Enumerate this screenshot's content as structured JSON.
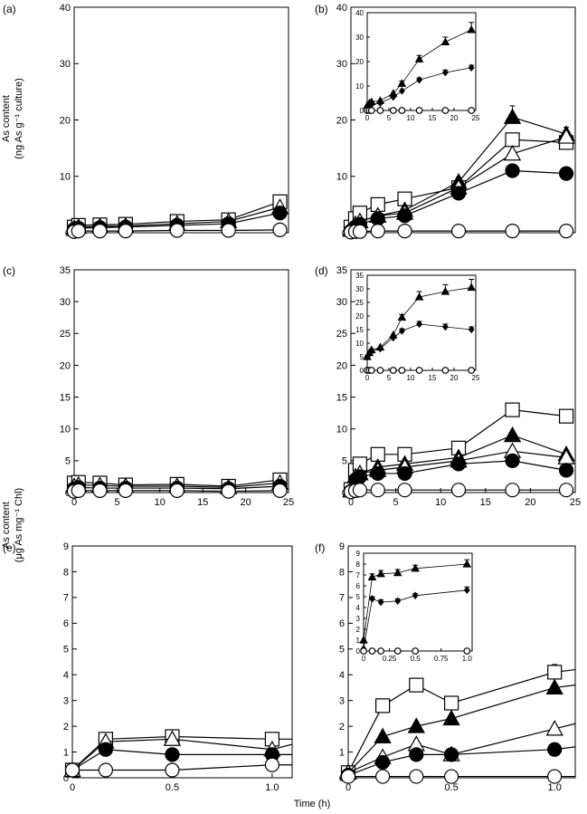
{
  "figure": {
    "ylabel_top": [
      "As content",
      "(ng As g⁻¹ culture)"
    ],
    "ylabel_bottom": [
      "As content",
      "(μg As mg⁻¹ Chl)"
    ],
    "xlabel": "Time (h)"
  },
  "chart_data": [
    {
      "id": "a",
      "label": "(a)",
      "type": "line",
      "xlim": [
        0,
        25
      ],
      "ylim": [
        0,
        40
      ],
      "xticks": [],
      "yticks": [
        0,
        10,
        20,
        30,
        40
      ],
      "series": [
        {
          "marker": "square-open",
          "x": [
            0,
            0.5,
            3,
            6,
            12,
            18,
            24
          ],
          "y": [
            1,
            1.3,
            1.4,
            1.5,
            2,
            2.3,
            5.5
          ]
        },
        {
          "marker": "triangle-open",
          "x": [
            0,
            0.5,
            3,
            6,
            12,
            18,
            24
          ],
          "y": [
            0.8,
            1,
            1.1,
            1.2,
            1.6,
            2,
            4.5
          ]
        },
        {
          "marker": "circle-filled",
          "x": [
            0,
            0.5,
            3,
            6,
            12,
            18,
            24
          ],
          "y": [
            0.6,
            0.8,
            0.9,
            1,
            1.3,
            1.6,
            3.5
          ]
        },
        {
          "marker": "circle-open",
          "x": [
            0,
            0.5,
            3,
            6,
            12,
            18,
            24
          ],
          "y": [
            0.2,
            0.3,
            0.3,
            0.3,
            0.4,
            0.4,
            0.5
          ]
        }
      ]
    },
    {
      "id": "b",
      "label": "(b)",
      "type": "line",
      "xlim": [
        0,
        25
      ],
      "ylim": [
        0,
        40
      ],
      "xticks": [],
      "yticks": [
        0,
        10,
        20,
        30,
        40
      ],
      "series": [
        {
          "marker": "square-open",
          "x": [
            0,
            0.5,
            1,
            3,
            6,
            12,
            18,
            24
          ],
          "y": [
            1,
            2.5,
            3.5,
            5,
            6,
            8,
            16.5,
            16
          ]
        },
        {
          "marker": "triangle-filled",
          "x": [
            0,
            0.5,
            1,
            3,
            6,
            12,
            18,
            24
          ],
          "y": [
            0.5,
            1.5,
            2,
            3,
            4,
            9,
            20.5,
            17.5
          ],
          "err": [
            0,
            0,
            0,
            0,
            0,
            0.8,
            2,
            1.2
          ]
        },
        {
          "marker": "triangle-open",
          "x": [
            0,
            0.5,
            1,
            3,
            6,
            12,
            18,
            24
          ],
          "y": [
            0.5,
            1.5,
            2,
            3,
            3.5,
            8,
            14,
            17
          ]
        },
        {
          "marker": "circle-filled",
          "x": [
            0,
            0.5,
            1,
            3,
            6,
            12,
            18,
            24
          ],
          "y": [
            0.3,
            1,
            1.5,
            2.5,
            3,
            7,
            11,
            10.5
          ]
        },
        {
          "marker": "circle-open",
          "x": [
            0,
            0.5,
            1,
            3,
            6,
            12,
            18,
            24
          ],
          "y": [
            0.1,
            0.2,
            0.2,
            0.3,
            0.3,
            0.3,
            0.3,
            0.3
          ]
        }
      ],
      "inset": {
        "xlim": [
          0,
          25
        ],
        "ylim": [
          0,
          40
        ],
        "xticks": [
          0,
          5,
          10,
          15,
          20,
          25
        ],
        "yticks": [
          0,
          10,
          20,
          30,
          40
        ],
        "series": [
          {
            "marker": "triangle-filled",
            "x": [
              0,
              0.5,
              1,
              3,
              6,
              8,
              12,
              18,
              24
            ],
            "y": [
              2,
              3,
              3.5,
              4,
              7,
              11,
              21,
              28,
              33
            ],
            "err": [
              0,
              0,
              0,
              0,
              0,
              1,
              1.5,
              2,
              3
            ]
          },
          {
            "marker": "diamond-filled",
            "x": [
              0,
              0.5,
              1,
              3,
              6,
              8,
              12,
              18,
              24
            ],
            "y": [
              1.5,
              2,
              2.5,
              3,
              5.5,
              8,
              12.5,
              15.5,
              17.5
            ],
            "err": [
              0,
              0,
              0,
              0,
              0,
              0,
              0.8,
              1,
              1
            ]
          },
          {
            "marker": "circle-open",
            "x": [
              0,
              0.5,
              1,
              3,
              6,
              8,
              12,
              18,
              24
            ],
            "y": [
              0,
              0,
              0,
              0,
              0,
              0,
              0,
              0,
              0
            ]
          }
        ]
      }
    },
    {
      "id": "c",
      "label": "(c)",
      "type": "line",
      "xlim": [
        0,
        25
      ],
      "ylim": [
        0,
        35
      ],
      "xticks": [
        0,
        5,
        10,
        15,
        20,
        25
      ],
      "yticks": [
        0,
        5,
        10,
        15,
        20,
        25,
        30,
        35
      ],
      "series": [
        {
          "marker": "square-open",
          "x": [
            0,
            0.5,
            3,
            6,
            12,
            18,
            24
          ],
          "y": [
            1.5,
            1.6,
            1.5,
            1.2,
            1.3,
            1,
            2
          ]
        },
        {
          "marker": "triangle-open",
          "x": [
            0,
            0.5,
            3,
            6,
            12,
            18,
            24
          ],
          "y": [
            1,
            1.2,
            1.1,
            1,
            1,
            0.8,
            1.5
          ]
        },
        {
          "marker": "circle-filled",
          "x": [
            0,
            0.5,
            3,
            6,
            12,
            18,
            24
          ],
          "y": [
            0.6,
            0.8,
            0.7,
            0.7,
            0.7,
            0.6,
            1
          ]
        },
        {
          "marker": "circle-open",
          "x": [
            0,
            0.5,
            3,
            6,
            12,
            18,
            24
          ],
          "y": [
            0.2,
            0.3,
            0.3,
            0.3,
            0.3,
            0.2,
            0.3
          ]
        }
      ]
    },
    {
      "id": "d",
      "label": "(d)",
      "type": "line",
      "xlim": [
        0,
        25
      ],
      "ylim": [
        0,
        35
      ],
      "xticks": [
        0,
        5,
        10,
        15,
        20,
        25
      ],
      "yticks": [
        0,
        5,
        10,
        15,
        20,
        25,
        30,
        35
      ],
      "series": [
        {
          "marker": "square-open",
          "x": [
            0,
            0.5,
            1,
            3,
            6,
            12,
            18,
            24
          ],
          "y": [
            0.5,
            3.5,
            4.5,
            6,
            6,
            7,
            13,
            12
          ]
        },
        {
          "marker": "triangle-filled",
          "x": [
            0,
            0.5,
            1,
            3,
            6,
            12,
            18,
            24
          ],
          "y": [
            0.3,
            2.5,
            3,
            4,
            4.5,
            5.5,
            9,
            6
          ]
        },
        {
          "marker": "triangle-open",
          "x": [
            0,
            0.5,
            1,
            3,
            6,
            12,
            18,
            24
          ],
          "y": [
            0.3,
            2.5,
            3,
            3.5,
            4,
            5,
            6.5,
            5.5
          ]
        },
        {
          "marker": "circle-filled",
          "x": [
            0,
            0.5,
            1,
            3,
            6,
            12,
            18,
            24
          ],
          "y": [
            0.2,
            2,
            2.5,
            3,
            3,
            4.5,
            5,
            3.5
          ]
        },
        {
          "marker": "circle-open",
          "x": [
            0,
            0.5,
            1,
            3,
            6,
            12,
            18,
            24
          ],
          "y": [
            0.1,
            0.3,
            0.4,
            0.4,
            0.4,
            0.4,
            0.4,
            0.4
          ]
        }
      ],
      "inset": {
        "xlim": [
          0,
          25
        ],
        "ylim": [
          0,
          35
        ],
        "xticks": [
          0,
          5,
          10,
          15,
          20,
          25
        ],
        "yticks": [
          0,
          5,
          10,
          15,
          20,
          25,
          30,
          35
        ],
        "series": [
          {
            "marker": "triangle-filled",
            "x": [
              0,
              0.5,
              1,
              3,
              6,
              8,
              12,
              18,
              24
            ],
            "y": [
              5,
              6.5,
              7.5,
              8.5,
              13,
              19.5,
              27,
              29,
              30.5
            ],
            "err": [
              0,
              0,
              0,
              0,
              0,
              1,
              2,
              2.5,
              3
            ]
          },
          {
            "marker": "diamond-filled",
            "x": [
              0,
              0.5,
              1,
              3,
              6,
              8,
              12,
              18,
              24
            ],
            "y": [
              5,
              6,
              7,
              8,
              12,
              14.5,
              17,
              16,
              15
            ],
            "err": [
              0,
              0,
              0,
              0,
              0,
              0.8,
              1,
              1,
              1
            ]
          },
          {
            "marker": "circle-open",
            "x": [
              0,
              0.5,
              1,
              3,
              6,
              8,
              12,
              18,
              24
            ],
            "y": [
              0,
              0,
              0,
              0,
              0,
              0,
              0,
              0,
              0
            ]
          }
        ]
      }
    },
    {
      "id": "e",
      "label": "(e)",
      "type": "line",
      "xlim": [
        0,
        1.1
      ],
      "ylim": [
        0,
        9
      ],
      "xticks": [
        0,
        0.5,
        1.0
      ],
      "xticklabels": [
        "0",
        "0.5",
        "1.0"
      ],
      "yticks": [
        0,
        1,
        2,
        3,
        4,
        5,
        6,
        7,
        8,
        9
      ],
      "series": [
        {
          "marker": "square-open",
          "x": [
            0,
            0.167,
            0.5,
            1.0,
            1.1
          ],
          "y": [
            0.3,
            1.5,
            1.6,
            1.5,
            1.5
          ]
        },
        {
          "marker": "triangle-open",
          "x": [
            0,
            0.167,
            0.5,
            1.0,
            1.1
          ],
          "y": [
            0.3,
            1.4,
            1.5,
            1.1,
            1.3
          ]
        },
        {
          "marker": "circle-filled",
          "x": [
            0,
            0.167,
            0.5,
            1.0,
            1.1
          ],
          "y": [
            0.3,
            1.1,
            0.9,
            0.9,
            0.9
          ]
        },
        {
          "marker": "circle-open",
          "x": [
            0,
            0.167,
            0.5,
            1.0,
            1.1
          ],
          "y": [
            0.3,
            0.3,
            0.3,
            0.5,
            0.5
          ]
        }
      ]
    },
    {
      "id": "f",
      "label": "(f)",
      "type": "line",
      "xlim": [
        0,
        1.1
      ],
      "ylim": [
        0,
        9
      ],
      "xticks": [
        0,
        0.5,
        1.0
      ],
      "xticklabels": [
        "0",
        "0.5",
        "1.0"
      ],
      "yticks": [
        0,
        1,
        2,
        3,
        4,
        5,
        6,
        7,
        8,
        9
      ],
      "series": [
        {
          "marker": "square-open",
          "x": [
            0,
            0.167,
            0.33,
            0.5,
            1.0,
            1.1
          ],
          "y": [
            0.2,
            2.8,
            3.6,
            2.9,
            4.1,
            4.2
          ],
          "err": [
            0,
            0,
            0.2,
            0,
            0.3,
            0
          ]
        },
        {
          "marker": "triangle-filled",
          "x": [
            0,
            0.167,
            0.33,
            0.5,
            1.0,
            1.1
          ],
          "y": [
            0.2,
            1.6,
            2.0,
            2.3,
            3.5,
            3.6
          ]
        },
        {
          "marker": "triangle-open",
          "x": [
            0,
            0.167,
            0.33,
            0.5,
            1.0,
            1.1
          ],
          "y": [
            0.2,
            0.8,
            1.3,
            0.9,
            1.9,
            2.1
          ]
        },
        {
          "marker": "circle-filled",
          "x": [
            0,
            0.167,
            0.33,
            0.5,
            1.0,
            1.1
          ],
          "y": [
            0.1,
            0.6,
            0.9,
            0.9,
            1.1,
            1.2
          ]
        },
        {
          "marker": "circle-open",
          "x": [
            0,
            0.167,
            0.33,
            0.5,
            1.0,
            1.1
          ],
          "y": [
            0.05,
            0.05,
            0.05,
            0.05,
            0.05,
            0.05
          ]
        }
      ],
      "inset": {
        "xlim": [
          0,
          1.05
        ],
        "ylim": [
          0,
          9
        ],
        "xticks": [
          0,
          0.25,
          0.5,
          0.75,
          1.0
        ],
        "xticklabels": [
          "0",
          "0.25",
          "0.5",
          "0.75",
          "1.0"
        ],
        "yticks": [
          0,
          1,
          2,
          3,
          4,
          5,
          6,
          7,
          8,
          9
        ],
        "series": [
          {
            "marker": "triangle-filled",
            "x": [
              0,
              0.083,
              0.167,
              0.33,
              0.5,
              1.0
            ],
            "y": [
              1,
              6.8,
              7.1,
              7.2,
              7.6,
              8.0
            ],
            "err": [
              0,
              0.3,
              0.3,
              0.3,
              0.3,
              0.4
            ]
          },
          {
            "marker": "diamond-filled",
            "x": [
              0,
              0.083,
              0.167,
              0.33,
              0.5,
              1.0
            ],
            "y": [
              0.2,
              4.8,
              4.5,
              4.6,
              5.1,
              5.6
            ],
            "err": [
              0,
              0.2,
              0.2,
              0.2,
              0.2,
              0.3
            ]
          },
          {
            "marker": "circle-open",
            "x": [
              0,
              0.083,
              0.167,
              0.33,
              0.5,
              1.0
            ],
            "y": [
              0,
              0,
              0,
              0,
              0,
              0
            ]
          }
        ]
      }
    }
  ]
}
